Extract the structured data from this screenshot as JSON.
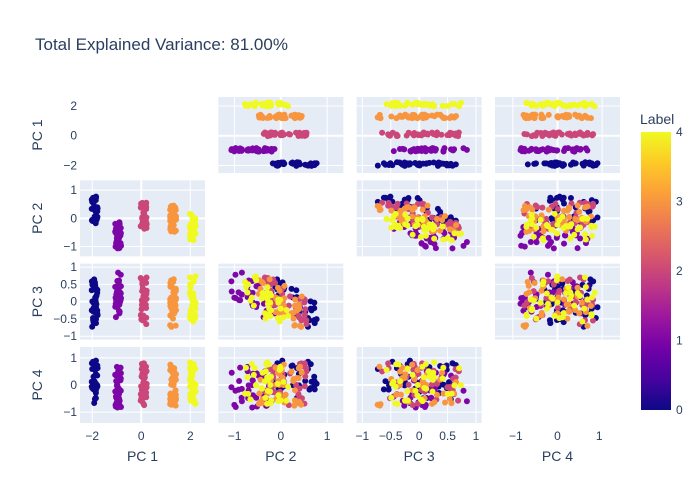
{
  "chart_data": {
    "type": "scatter",
    "title": "Total Explained Variance: 81.00%",
    "dimensions": [
      "PC 1",
      "PC 2",
      "PC 3",
      "PC 4"
    ],
    "diagonal_visible": false,
    "colorbar": {
      "title": "Label",
      "range": [
        0,
        4
      ],
      "ticks": [
        0,
        1,
        2,
        3,
        4
      ],
      "colorscale": [
        "#0d0887",
        "#46039f",
        "#7201a8",
        "#9c179e",
        "#bd3786",
        "#d8576b",
        "#ed7953",
        "#fb9f3a",
        "#fdca26",
        "#f0f921"
      ]
    },
    "axes": {
      "PC 1": {
        "range": [
          -2.5,
          2.6
        ],
        "ticks": [
          -2,
          0,
          2
        ]
      },
      "PC 2": {
        "range": [
          -1.35,
          1.35
        ],
        "ticks": [
          -1,
          0,
          1
        ]
      },
      "PC 3": {
        "range": [
          -1.1,
          1.1
        ],
        "ticks": [
          -1,
          -0.5,
          0,
          0.5,
          1
        ]
      },
      "PC 4": {
        "range": [
          -1.4,
          1.4
        ],
        "ticks": [
          -1,
          0,
          1
        ]
      }
    },
    "bottom_axes": {
      "PC 1": {
        "range": [
          -2.5,
          2.6
        ],
        "ticks": [
          -2,
          0,
          2
        ]
      },
      "PC 2": {
        "range": [
          -1.35,
          1.35
        ],
        "ticks": [
          -1,
          0,
          1
        ]
      },
      "PC 3": {
        "range": [
          -1.1,
          1.1
        ],
        "ticks": [
          -1,
          -0.5,
          0,
          0.5,
          1
        ]
      },
      "PC 4": {
        "range": [
          -1.5,
          1.5
        ],
        "ticks": [
          -1,
          0,
          1
        ]
      }
    },
    "clusters": [
      {
        "label": 0,
        "pc1": -1.9,
        "pc2": 0.3,
        "pc3": -0.05,
        "pc4": 0.1
      },
      {
        "label": 1,
        "pc1": -0.95,
        "pc2": -0.6,
        "pc3": 0.15,
        "pc4": -0.1
      },
      {
        "label": 2,
        "pc1": 0.1,
        "pc2": 0.1,
        "pc3": 0.0,
        "pc4": 0.05
      },
      {
        "label": 3,
        "pc1": 1.3,
        "pc2": 0.0,
        "pc3": 0.0,
        "pc4": 0.0
      },
      {
        "label": 4,
        "pc1": 2.1,
        "pc2": -0.3,
        "pc3": 0.0,
        "pc4": 0.1
      }
    ]
  }
}
